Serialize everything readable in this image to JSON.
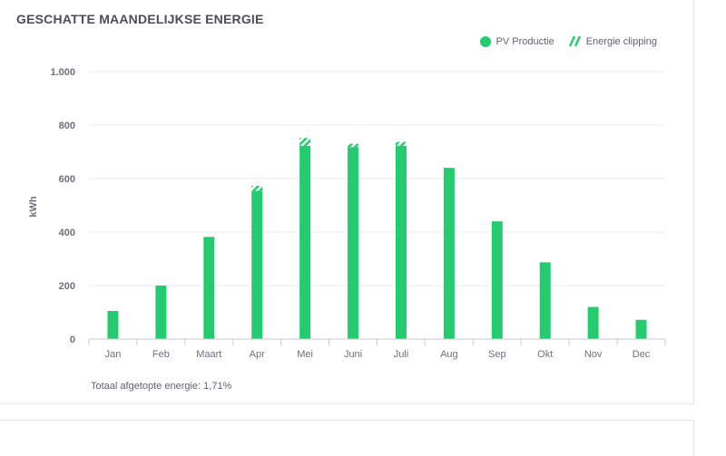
{
  "card": {
    "title": "GESCHATTE MAANDELIJKSE ENERGIE",
    "footer_label": "Totaal afgetopte energie: 1,71%"
  },
  "colors": {
    "production": "#24cc6f",
    "clipping": "#24cc6f",
    "grid": "#e9ebef",
    "axis_text": "#6c6f80"
  },
  "chart_data": {
    "type": "bar",
    "stacked": true,
    "ylabel": "kWh",
    "xlabel": "",
    "ylim": [
      0,
      1000
    ],
    "yticks": [
      0,
      200,
      400,
      600,
      800,
      1000
    ],
    "ytick_labels": [
      "0",
      "200",
      "400",
      "600",
      "800",
      "1.000"
    ],
    "categories": [
      "Jan",
      "Feb",
      "Maart",
      "Apr",
      "Mei",
      "Juni",
      "Juli",
      "Aug",
      "Sep",
      "Okt",
      "Nov",
      "Dec"
    ],
    "series": [
      {
        "name": "PV Productie",
        "values": [
          105,
          200,
          382,
          555,
          722,
          718,
          723,
          640,
          440,
          287,
          120,
          72
        ]
      },
      {
        "name": "Energie clipping",
        "values": [
          0,
          0,
          0,
          18,
          30,
          12,
          14,
          0,
          0,
          0,
          0,
          0
        ]
      }
    ],
    "legend_position": "top-right",
    "grid": true
  }
}
